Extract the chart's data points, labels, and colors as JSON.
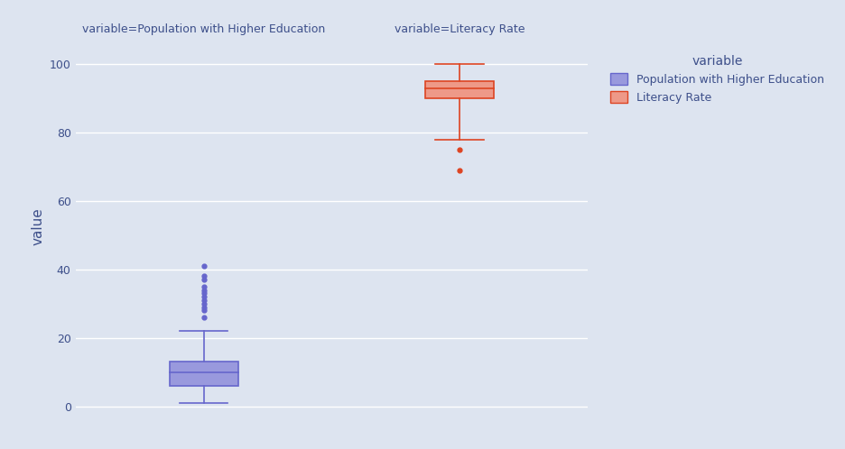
{
  "panel_titles": [
    "variable=Population with Higher Education",
    "variable=Literacy Rate"
  ],
  "ylabel": "value",
  "ylim": [
    -2,
    107
  ],
  "yticks": [
    0,
    20,
    40,
    60,
    80,
    100
  ],
  "background_color": "#dde4f0",
  "panel_bg": "#dde4f0",
  "grid_color": "#ffffff",
  "pop_color": "#6666cc",
  "pop_fill": "#9999dd",
  "lit_color": "#dd4422",
  "lit_fill": "#ee9988",
  "pop_data": {
    "whisker_low": 1,
    "whisker_high": 22,
    "q1": 6,
    "median": 10,
    "q3": 13,
    "outliers": [
      26,
      28,
      29,
      30,
      31,
      32,
      33,
      34,
      35,
      37,
      38,
      41
    ]
  },
  "lit_data": {
    "whisker_low": 78,
    "whisker_high": 100,
    "q1": 90,
    "median": 93,
    "q3": 95,
    "outliers": [
      75,
      69
    ]
  },
  "legend_title": "variable",
  "legend_entries": [
    "Population with Higher Education",
    "Literacy Rate"
  ],
  "legend_colors": [
    "#9999dd",
    "#ee9988"
  ],
  "legend_edge_colors": [
    "#6666cc",
    "#dd4422"
  ],
  "title_color": "#3d4f8a",
  "tick_color": "#3d4f8a",
  "label_color": "#3d4f8a"
}
